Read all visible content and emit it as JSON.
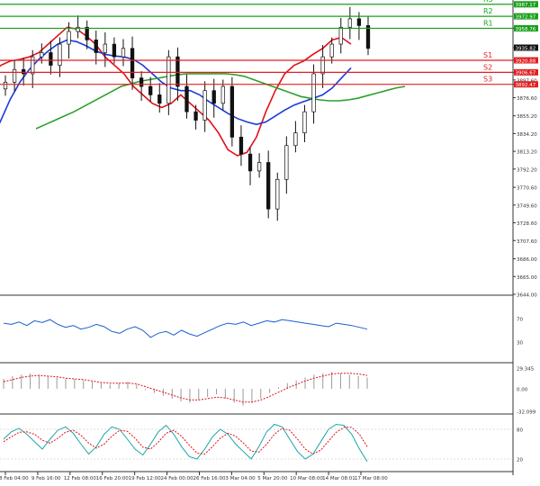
{
  "chart_data": [
    {
      "panel": "price",
      "type": "candlestick",
      "y_ticks": [
        "3958.76",
        "3935.82",
        "3920.88",
        "3906.67",
        "3897.60",
        "3892.47",
        "3876.60",
        "3855.20",
        "3834.20",
        "3813.20",
        "3792.20",
        "3770.60",
        "3749.60",
        "3728.60",
        "3707.60",
        "3686.00",
        "3665.00",
        "3644.00"
      ],
      "y_range": [
        3644.0,
        3985.0
      ],
      "levels": [
        {
          "label": "R3",
          "value": 3987.17,
          "color": "#19a019"
        },
        {
          "label": "R2",
          "value": 3972.97,
          "color": "#19a019"
        },
        {
          "label": "R1",
          "value": 3958.76,
          "color": "#19a019"
        },
        {
          "label": "S1",
          "value": 3920.88,
          "color": "#e02020"
        },
        {
          "label": "S2",
          "value": 3906.67,
          "color": "#e02020"
        },
        {
          "label": "S3",
          "value": 3892.47,
          "color": "#e02020"
        }
      ],
      "last_price": "3935.82",
      "x_ticks": [
        "8 Feb 04:00",
        "9 Feb 16:00",
        "12 Feb 08:00",
        "16 Feb 20:00",
        "19 Feb 12:00",
        "24 Feb 00:00",
        "26 Feb 16:00",
        "3 Mar 04:00",
        "5 Mar 20:00",
        "10 Mar 08:00",
        "14 Mar 08:01",
        "17 Mar 08:00"
      ],
      "series": [
        {
          "kind": "moving-average",
          "color": "#e0101a",
          "values": [
            3890,
            3905,
            3915,
            3920,
            3922,
            3925,
            3930,
            3940,
            3950,
            3960,
            3958,
            3950,
            3940,
            3925,
            3915,
            3905,
            3890,
            3880,
            3870,
            3865,
            3870,
            3880,
            3870,
            3860,
            3850,
            3835,
            3815,
            3808,
            3812,
            3830,
            3860,
            3885,
            3905,
            3915,
            3920,
            3928,
            3935,
            3945,
            3948,
            3940
          ]
        },
        {
          "kind": "moving-average",
          "color": "#1a3adc",
          "values": [
            3800,
            3825,
            3850,
            3875,
            3895,
            3910,
            3922,
            3932,
            3940,
            3945,
            3943,
            3938,
            3932,
            3928,
            3926,
            3925,
            3922,
            3915,
            3905,
            3895,
            3888,
            3885,
            3885,
            3880,
            3872,
            3865,
            3858,
            3852,
            3848,
            3845,
            3848,
            3855,
            3862,
            3868,
            3872,
            3876,
            3880,
            3888,
            3900,
            3912
          ]
        },
        {
          "kind": "moving-average",
          "color": "#2ca02c",
          "values": [
            3840,
            3845,
            3850,
            3855,
            3860,
            3866,
            3872,
            3878,
            3884,
            3890,
            3893,
            3896,
            3898,
            3900,
            3902,
            3904,
            3905,
            3905,
            3905,
            3905,
            3905,
            3904,
            3902,
            3898,
            3894,
            3890,
            3886,
            3882,
            3878,
            3876,
            3874,
            3873,
            3873,
            3874,
            3876,
            3879,
            3882,
            3885,
            3888,
            3890
          ]
        }
      ],
      "candles_close": [
        3895,
        3910,
        3905,
        3925,
        3930,
        3915,
        3940,
        3955,
        3960,
        3945,
        3930,
        3940,
        3925,
        3935,
        3900,
        3890,
        3880,
        3870,
        3925,
        3890,
        3860,
        3850,
        3885,
        3870,
        3890,
        3830,
        3810,
        3790,
        3800,
        3745,
        3780,
        3820,
        3835,
        3860,
        3905,
        3925,
        3940,
        3960,
        3970,
        3962,
        3935
      ]
    },
    {
      "panel": "rsi",
      "type": "line",
      "y_ticks": [
        "70",
        "30"
      ],
      "y_range": [
        0,
        100
      ],
      "series": [
        {
          "color": "#1a5fd0",
          "values": [
            62,
            60,
            64,
            58,
            66,
            63,
            68,
            60,
            55,
            58,
            52,
            55,
            60,
            56,
            48,
            45,
            52,
            56,
            50,
            38,
            45,
            48,
            42,
            50,
            44,
            40,
            46,
            52,
            58,
            62,
            60,
            64,
            58,
            62,
            66,
            64,
            68,
            66,
            64,
            62,
            60,
            58,
            56,
            62,
            60,
            58,
            55,
            52
          ]
        }
      ]
    },
    {
      "panel": "macd",
      "type": "histogram+line",
      "y_ticks": [
        "29.345",
        "0.00",
        "-32.099"
      ],
      "y_range": [
        -32.099,
        29.345
      ],
      "series": [
        {
          "kind": "histogram",
          "color": "#999999",
          "values": [
            14,
            18,
            20,
            22,
            20,
            18,
            16,
            14,
            14,
            12,
            10,
            8,
            6,
            8,
            10,
            6,
            -2,
            -6,
            -10,
            -14,
            -18,
            -20,
            -16,
            -12,
            -8,
            -14,
            -20,
            -24,
            -20,
            -14,
            -6,
            2,
            8,
            12,
            16,
            20,
            22,
            24,
            22,
            20,
            18,
            16
          ]
        },
        {
          "kind": "signal",
          "color": "#e0101a",
          "values": [
            10,
            13,
            16,
            18,
            19,
            18,
            17,
            15,
            14,
            13,
            11,
            9,
            8,
            8,
            8,
            7,
            3,
            -1,
            -5,
            -9,
            -13,
            -16,
            -16,
            -14,
            -12,
            -13,
            -16,
            -19,
            -19,
            -16,
            -11,
            -5,
            1,
            6,
            11,
            15,
            18,
            21,
            22,
            22,
            21,
            19
          ]
        }
      ]
    },
    {
      "panel": "stochastic",
      "type": "line",
      "y_ticks": [
        "80",
        "20"
      ],
      "y_range": [
        0,
        100
      ],
      "series": [
        {
          "kind": "%K",
          "color": "#1aa5a5",
          "values": [
            60,
            75,
            82,
            70,
            55,
            40,
            60,
            78,
            85,
            72,
            50,
            30,
            45,
            70,
            85,
            80,
            60,
            40,
            28,
            50,
            75,
            88,
            70,
            45,
            25,
            20,
            40,
            65,
            80,
            70,
            50,
            35,
            20,
            45,
            75,
            90,
            85,
            60,
            35,
            20,
            30,
            55,
            80,
            90,
            88,
            70,
            40,
            15
          ]
        },
        {
          "kind": "%D",
          "color": "#e0101a",
          "values": [
            55,
            65,
            74,
            75,
            70,
            58,
            52,
            62,
            74,
            78,
            68,
            52,
            42,
            50,
            66,
            78,
            76,
            62,
            44,
            40,
            54,
            72,
            78,
            66,
            48,
            32,
            30,
            45,
            62,
            72,
            66,
            52,
            36,
            34,
            50,
            70,
            82,
            78,
            60,
            40,
            30,
            38,
            56,
            74,
            84,
            84,
            70,
            45
          ]
        }
      ]
    }
  ]
}
